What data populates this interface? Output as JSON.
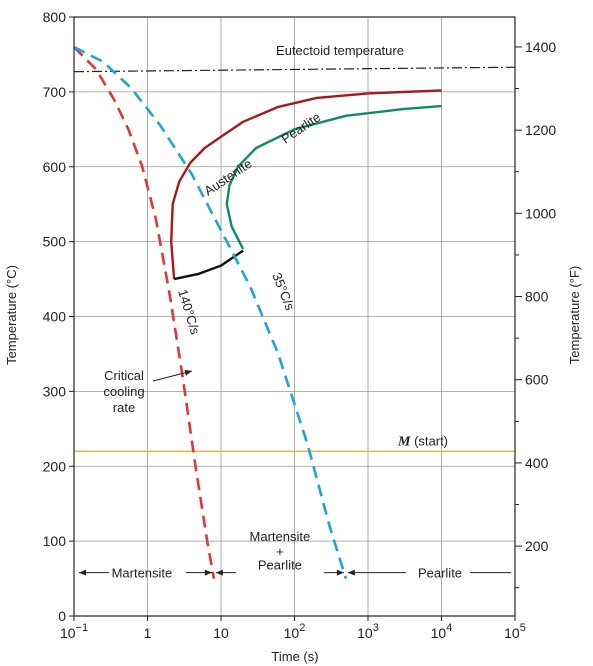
{
  "chart_data": {
    "type": "line",
    "title": "",
    "xlabel": "Time (s)",
    "ylabel": "Temperature (°C)",
    "y2label": "Temperature (°F)",
    "xscale": "log",
    "xlim": [
      0.1,
      100000
    ],
    "ylim": [
      0,
      800
    ],
    "y2lim": [
      32,
      1472
    ],
    "x_tick_labels": [
      {
        "v": 0.1,
        "base": "10",
        "exp": "−1"
      },
      {
        "v": 1,
        "base": "1",
        "exp": ""
      },
      {
        "v": 10,
        "base": "10",
        "exp": ""
      },
      {
        "v": 100,
        "base": "10",
        "exp": "2"
      },
      {
        "v": 1000,
        "base": "10",
        "exp": "3"
      },
      {
        "v": 10000,
        "base": "10",
        "exp": "4"
      },
      {
        "v": 100000,
        "base": "10",
        "exp": "5"
      }
    ],
    "y_ticks": [
      0,
      100,
      200,
      300,
      400,
      500,
      600,
      700,
      800
    ],
    "y2_ticks": [
      200,
      400,
      600,
      800,
      1000,
      1200,
      1400
    ],
    "grid": true,
    "series": [
      {
        "key": "eutectoid",
        "color": "#222222",
        "dash": "10 3 2 3",
        "width": 1.2,
        "x": [
          0.1,
          100000
        ],
        "y": [
          727,
          733
        ]
      },
      {
        "key": "m_start",
        "color": "#f2b45a",
        "dash": "",
        "width": 1.6,
        "x": [
          0.1,
          100000
        ],
        "y": [
          220,
          220
        ]
      },
      {
        "key": "start_curve",
        "color": "#a6191c",
        "dash": "",
        "width": 2.4,
        "x": [
          2.3,
          2.1,
          2.2,
          2.7,
          3.8,
          6,
          10,
          20,
          60,
          200,
          1000,
          10000
        ],
        "y": [
          450,
          500,
          550,
          580,
          605,
          625,
          640,
          660,
          680,
          692,
          698,
          702
        ]
      },
      {
        "key": "finish_curve",
        "color": "#0f8a6c",
        "dash": "",
        "width": 2.4,
        "x": [
          20,
          14,
          12,
          13,
          17,
          30,
          100,
          500,
          3000,
          10000
        ],
        "y": [
          490,
          520,
          550,
          575,
          600,
          625,
          650,
          668,
          677,
          681
        ]
      },
      {
        "key": "bainite_boundary",
        "color": "#111111",
        "dash": "",
        "width": 2.4,
        "x": [
          2.3,
          5,
          10,
          20
        ],
        "y": [
          450,
          457,
          468,
          488
        ]
      },
      {
        "key": "cooling_140",
        "color": "#e0353a",
        "dash": "12 7",
        "width": 2.6,
        "x": [
          0.1,
          0.2,
          0.35,
          0.55,
          0.85,
          1.3,
          2,
          3,
          4.5,
          6.5,
          8
        ],
        "y": [
          760,
          730,
          690,
          650,
          600,
          530,
          430,
          320,
          200,
          100,
          50
        ]
      },
      {
        "key": "cooling_35",
        "color": "#1ea3dd",
        "dash": "12 7",
        "width": 2.6,
        "x": [
          0.1,
          0.25,
          0.6,
          1.5,
          4,
          10,
          25,
          60,
          150,
          300,
          500
        ],
        "y": [
          760,
          740,
          705,
          655,
          590,
          515,
          440,
          350,
          230,
          120,
          50
        ]
      }
    ],
    "regions": [
      {
        "label": "Martensite",
        "from": 0.1,
        "to": 8
      },
      {
        "label": "Martensite",
        "label2": "+",
        "label3": "Pearlite",
        "from": 8,
        "to": 500
      },
      {
        "label": "Pearlite",
        "from": 500,
        "to": 100000
      }
    ],
    "annotations": {
      "eutectoid": "Eutectoid temperature",
      "mstart_italic": "M",
      "mstart_rest": " (start)",
      "austenite": "Austenite",
      "pearlite_arrow": "Pearlite",
      "rate_140": "140°C/s",
      "rate_35": "35°C/s",
      "critical_1": "Critical",
      "critical_2": "cooling",
      "critical_3": "rate"
    }
  }
}
